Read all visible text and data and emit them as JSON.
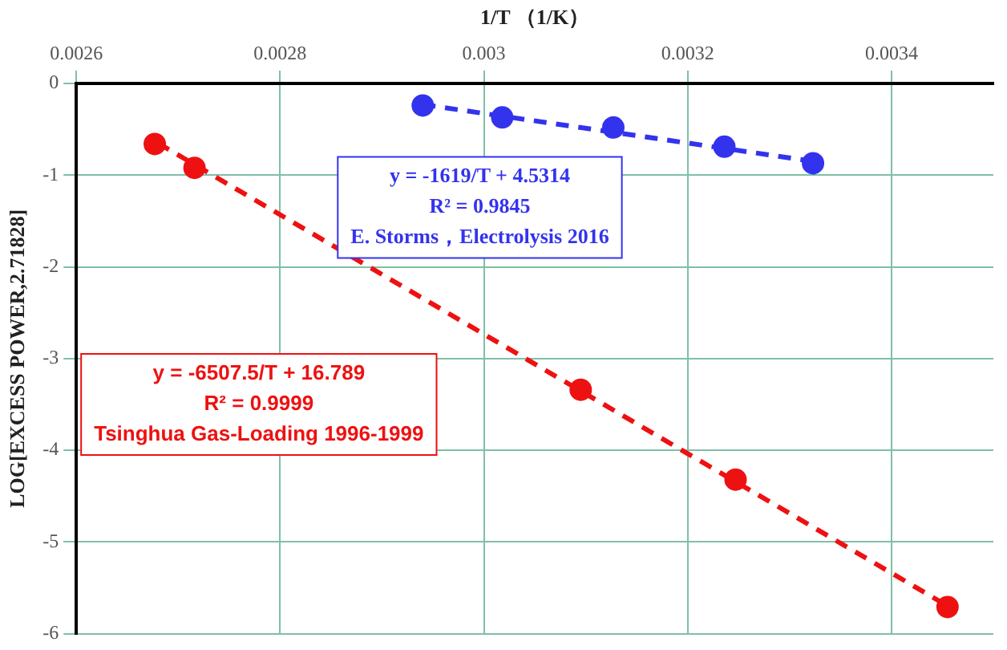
{
  "chart_data": {
    "type": "scatter",
    "xlabel": "1/T （1/K）",
    "ylabel": "LOG[EXCESS POWER,2.71828]",
    "xlim": [
      0.0026,
      0.0035
    ],
    "xticks": [
      0.0026,
      0.0028,
      0.003,
      0.0032,
      0.0034
    ],
    "ylim": [
      -6,
      0
    ],
    "yticks": [
      0,
      -1,
      -2,
      -3,
      -4,
      -5,
      -6
    ],
    "grid": true,
    "legend": false,
    "marker": "circle",
    "series": [
      {
        "type": "line",
        "color": "#3333ee",
        "x": [
          0.00294,
          0.00333
        ],
        "values": [
          -0.23,
          -0.86
        ],
        "line_style": "dashed",
        "marker": "none"
      },
      {
        "type": "scatter",
        "color": "#3333ee",
        "x": [
          0.00294,
          0.003018,
          0.003127,
          0.003236,
          0.003323
        ],
        "values": [
          -0.24,
          -0.37,
          -0.48,
          -0.69,
          -0.87
        ]
      },
      {
        "type": "line",
        "color": "#ee1111",
        "x": [
          0.00268,
          0.00346
        ],
        "values": [
          -0.65,
          -5.73
        ],
        "line_style": "dashed",
        "marker": "none"
      },
      {
        "type": "scatter",
        "color": "#ee1111",
        "x": [
          0.002677,
          0.002716,
          0.003095,
          0.003247,
          0.003455
        ],
        "values": [
          -0.66,
          -0.92,
          -3.34,
          -4.32,
          -5.71
        ]
      }
    ],
    "annotations": [
      "y = -1619/T + 4.5314",
      "R² = 0.9845",
      "E. Storms，Electrolysis 2016",
      "y = -6507.5/T + 16.789",
      "R² = 0.9999",
      "Tsinghua Gas-Loading 1996-1999"
    ]
  }
}
